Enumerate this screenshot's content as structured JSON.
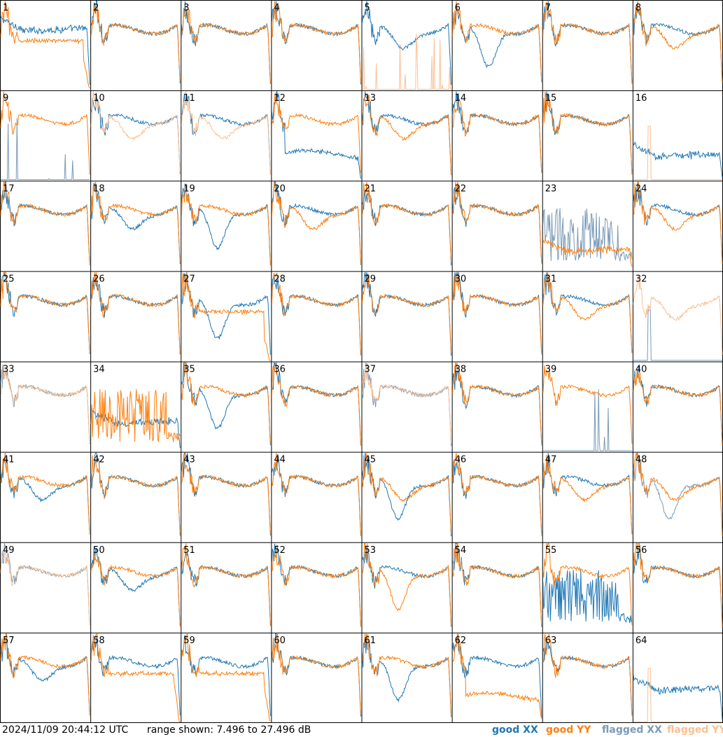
{
  "chart_data": {
    "type": "line",
    "grid": {
      "rows": 8,
      "cols": 8
    },
    "timestamp": "2024/11/09 20:44:12 UTC",
    "range_text": "range shown: 7.496 to 27.496 dB",
    "ylim": [
      7.496,
      27.496
    ],
    "legend": [
      {
        "key": "good_xx",
        "label": "good XX",
        "color": "#1f77b4"
      },
      {
        "key": "good_yy",
        "label": "good YY",
        "color": "#ff7f0e"
      },
      {
        "key": "flagged_xx",
        "label": "flagged XX",
        "color": "#7a9ab8"
      },
      {
        "key": "flagged_yy",
        "label": "flagged YY",
        "color": "#fbbf91"
      }
    ],
    "panels": [
      {
        "id": "1",
        "xx": "good",
        "yy": "good",
        "xx_shape": "flat",
        "yy_shape": "plateau-drop",
        "yy_level": 0.35,
        "xx_level": 0.6
      },
      {
        "id": "2",
        "xx": "good",
        "yy": "good",
        "xx_shape": "standard",
        "yy_shape": "standard"
      },
      {
        "id": "3",
        "xx": "good",
        "yy": "good",
        "xx_shape": "standard",
        "yy_shape": "standard"
      },
      {
        "id": "4",
        "xx": "good",
        "yy": "good",
        "xx_shape": "standard",
        "yy_shape": "standard"
      },
      {
        "id": "5",
        "xx": "good",
        "yy": "flagged",
        "xx_shape": "dip",
        "yy_shape": "spikes-low"
      },
      {
        "id": "6",
        "xx": "good",
        "yy": "good",
        "xx_shape": "deep-dip",
        "yy_shape": "standard"
      },
      {
        "id": "7",
        "xx": "good",
        "yy": "good",
        "xx_shape": "standard",
        "yy_shape": "standard"
      },
      {
        "id": "8",
        "xx": "good",
        "yy": "good",
        "xx_shape": "standard",
        "yy_shape": "dip"
      },
      {
        "id": "9",
        "xx": "flagged",
        "yy": "good",
        "xx_shape": "spikes-low",
        "yy_shape": "standard"
      },
      {
        "id": "10",
        "xx": "good",
        "yy": "flagged",
        "xx_shape": "standard",
        "yy_shape": "dip"
      },
      {
        "id": "11",
        "xx": "good",
        "yy": "flagged",
        "xx_shape": "standard",
        "yy_shape": "dip"
      },
      {
        "id": "12",
        "xx": "good",
        "yy": "good",
        "xx_shape": "low-plateau",
        "yy_shape": "standard"
      },
      {
        "id": "13",
        "xx": "good",
        "yy": "good",
        "xx_shape": "standard",
        "yy_shape": "dip"
      },
      {
        "id": "14",
        "xx": "good",
        "yy": "good",
        "xx_shape": "standard",
        "yy_shape": "standard"
      },
      {
        "id": "15",
        "xx": "good",
        "yy": "good",
        "xx_shape": "standard",
        "yy_shape": "standard"
      },
      {
        "id": "16",
        "xx": "good",
        "yy": "flagged",
        "xx_shape": "flat",
        "yy_shape": "spike-low",
        "xx_level": 0.2
      },
      {
        "id": "17",
        "xx": "good",
        "yy": "good",
        "xx_shape": "standard",
        "yy_shape": "standard"
      },
      {
        "id": "18",
        "xx": "good",
        "yy": "good",
        "xx_shape": "dip",
        "yy_shape": "standard"
      },
      {
        "id": "19",
        "xx": "good",
        "yy": "good",
        "xx_shape": "deep-dip",
        "yy_shape": "standard"
      },
      {
        "id": "20",
        "xx": "good",
        "yy": "good",
        "xx_shape": "standard",
        "yy_shape": "dip"
      },
      {
        "id": "21",
        "xx": "good",
        "yy": "good",
        "xx_shape": "standard",
        "yy_shape": "standard"
      },
      {
        "id": "22",
        "xx": "good",
        "yy": "good",
        "xx_shape": "standard",
        "yy_shape": "standard"
      },
      {
        "id": "23",
        "xx": "flagged",
        "yy": "good",
        "xx_shape": "noisy-low",
        "yy_shape": "flat",
        "yy_level": 0.15
      },
      {
        "id": "24",
        "xx": "good",
        "yy": "good",
        "xx_shape": "standard",
        "yy_shape": "dip"
      },
      {
        "id": "25",
        "xx": "good",
        "yy": "good",
        "xx_shape": "standard",
        "yy_shape": "standard"
      },
      {
        "id": "26",
        "xx": "good",
        "yy": "good",
        "xx_shape": "standard",
        "yy_shape": "standard"
      },
      {
        "id": "27",
        "xx": "good",
        "yy": "good",
        "xx_shape": "deep-dip",
        "yy_shape": "plateau-drop",
        "yy_level": 0.25
      },
      {
        "id": "28",
        "xx": "good",
        "yy": "good",
        "xx_shape": "standard",
        "yy_shape": "standard"
      },
      {
        "id": "29",
        "xx": "good",
        "yy": "good",
        "xx_shape": "standard",
        "yy_shape": "standard"
      },
      {
        "id": "30",
        "xx": "good",
        "yy": "good",
        "xx_shape": "standard",
        "yy_shape": "standard"
      },
      {
        "id": "31",
        "xx": "good",
        "yy": "good",
        "xx_shape": "standard",
        "yy_shape": "dip"
      },
      {
        "id": "32",
        "xx": "flagged",
        "yy": "flagged",
        "xx_shape": "spike-low",
        "yy_shape": "dip"
      },
      {
        "id": "33",
        "xx": "flagged",
        "yy": "flagged",
        "xx_shape": "standard",
        "yy_shape": "standard"
      },
      {
        "id": "34",
        "xx": "good",
        "yy": "good",
        "xx_shape": "flat",
        "yy_shape": "noisy-low",
        "xx_level": 0.25
      },
      {
        "id": "35",
        "xx": "good",
        "yy": "good",
        "xx_shape": "deep-dip",
        "yy_shape": "standard"
      },
      {
        "id": "36",
        "xx": "good",
        "yy": "good",
        "xx_shape": "standard",
        "yy_shape": "standard"
      },
      {
        "id": "37",
        "xx": "flagged",
        "yy": "flagged",
        "xx_shape": "standard",
        "yy_shape": "standard"
      },
      {
        "id": "38",
        "xx": "good",
        "yy": "good",
        "xx_shape": "standard",
        "yy_shape": "standard"
      },
      {
        "id": "39",
        "xx": "flagged",
        "yy": "good",
        "xx_shape": "spikes-low",
        "yy_shape": "standard"
      },
      {
        "id": "40",
        "xx": "good",
        "yy": "good",
        "xx_shape": "standard",
        "yy_shape": "standard"
      },
      {
        "id": "41",
        "xx": "good",
        "yy": "good",
        "xx_shape": "dip",
        "yy_shape": "standard"
      },
      {
        "id": "42",
        "xx": "good",
        "yy": "good",
        "xx_shape": "standard",
        "yy_shape": "standard"
      },
      {
        "id": "43",
        "xx": "good",
        "yy": "good",
        "xx_shape": "standard",
        "yy_shape": "standard"
      },
      {
        "id": "44",
        "xx": "good",
        "yy": "good",
        "xx_shape": "standard",
        "yy_shape": "standard"
      },
      {
        "id": "45",
        "xx": "good",
        "yy": "good",
        "xx_shape": "deep-dip",
        "yy_shape": "dip"
      },
      {
        "id": "46",
        "xx": "good",
        "yy": "good",
        "xx_shape": "standard",
        "yy_shape": "standard"
      },
      {
        "id": "47",
        "xx": "good",
        "yy": "good",
        "xx_shape": "standard",
        "yy_shape": "dip"
      },
      {
        "id": "48",
        "xx": "flagged",
        "yy": "good",
        "xx_shape": "deep-dip",
        "yy_shape": "dip"
      },
      {
        "id": "49",
        "xx": "flagged",
        "yy": "flagged",
        "xx_shape": "standard",
        "yy_shape": "standard"
      },
      {
        "id": "50",
        "xx": "good",
        "yy": "good",
        "xx_shape": "dip",
        "yy_shape": "standard"
      },
      {
        "id": "51",
        "xx": "good",
        "yy": "good",
        "xx_shape": "standard",
        "yy_shape": "standard"
      },
      {
        "id": "52",
        "xx": "good",
        "yy": "good",
        "xx_shape": "standard",
        "yy_shape": "standard"
      },
      {
        "id": "53",
        "xx": "good",
        "yy": "good",
        "xx_shape": "standard",
        "yy_shape": "deep-dip"
      },
      {
        "id": "54",
        "xx": "good",
        "yy": "good",
        "xx_shape": "standard",
        "yy_shape": "standard"
      },
      {
        "id": "55",
        "xx": "good",
        "yy": "good",
        "xx_shape": "noisy-low",
        "yy_shape": "standard"
      },
      {
        "id": "56",
        "xx": "good",
        "yy": "good",
        "xx_shape": "standard",
        "yy_shape": "standard"
      },
      {
        "id": "57",
        "xx": "good",
        "yy": "good",
        "xx_shape": "dip",
        "yy_shape": "standard"
      },
      {
        "id": "58",
        "xx": "good",
        "yy": "good",
        "xx_shape": "standard",
        "yy_shape": "plateau-drop",
        "yy_level": 0.45
      },
      {
        "id": "59",
        "xx": "good",
        "yy": "good",
        "xx_shape": "standard",
        "yy_shape": "plateau-drop",
        "yy_level": 0.4
      },
      {
        "id": "60",
        "xx": "good",
        "yy": "good",
        "xx_shape": "standard",
        "yy_shape": "standard"
      },
      {
        "id": "61",
        "xx": "good",
        "yy": "good",
        "xx_shape": "deep-dip",
        "yy_shape": "standard"
      },
      {
        "id": "62",
        "xx": "good",
        "yy": "good",
        "xx_shape": "standard",
        "yy_shape": "low-plateau"
      },
      {
        "id": "63",
        "xx": "good",
        "yy": "good",
        "xx_shape": "standard",
        "yy_shape": "standard"
      },
      {
        "id": "64",
        "xx": "good",
        "yy": "flagged",
        "xx_shape": "flat",
        "yy_shape": "spike-low",
        "xx_level": 0.3
      }
    ]
  }
}
